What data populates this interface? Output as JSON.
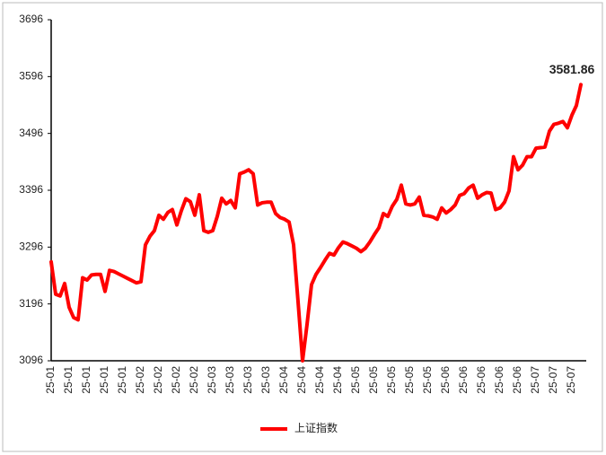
{
  "chart_data": {
    "type": "line",
    "categories": [
      "25-01",
      null,
      null,
      null,
      "25-01",
      null,
      null,
      null,
      "25-01",
      null,
      null,
      null,
      "25-01",
      null,
      null,
      null,
      "25-01",
      null,
      null,
      null,
      "25-02",
      null,
      null,
      null,
      "25-02",
      null,
      null,
      null,
      "25-02",
      null,
      null,
      null,
      "25-02",
      null,
      null,
      null,
      "25-03",
      null,
      null,
      null,
      "25-03",
      null,
      null,
      null,
      "25-03",
      null,
      null,
      null,
      "25-03",
      null,
      null,
      null,
      "25-04",
      null,
      null,
      null,
      "25-04",
      null,
      null,
      null,
      "25-04",
      null,
      null,
      null,
      "25-04",
      null,
      null,
      null,
      "25-05",
      null,
      null,
      null,
      "25-05",
      null,
      null,
      null,
      "25-05",
      null,
      null,
      null,
      "25-05",
      null,
      null,
      null,
      "25-05",
      null,
      null,
      null,
      "25-06",
      null,
      null,
      null,
      "25-06",
      null,
      null,
      null,
      "25-06",
      null,
      null,
      null,
      "25-06",
      null,
      null,
      null,
      "25-06",
      null,
      null,
      null,
      "25-07",
      null,
      null,
      null,
      "25-07",
      null,
      null,
      null,
      "25-07",
      null,
      null
    ],
    "series": [
      {
        "name": "上证指数",
        "color": "#ff0000",
        "values": [
          3270,
          3213,
          3210,
          3232,
          3190,
          3172,
          3168,
          3242,
          3238,
          3247,
          3248,
          3248,
          3218,
          3255,
          3253,
          3249,
          3245,
          3241,
          3237,
          3233,
          3235,
          3300,
          3315,
          3325,
          3352,
          3345,
          3357,
          3362,
          3335,
          3360,
          3381,
          3376,
          3352,
          3388,
          3325,
          3322,
          3325,
          3350,
          3382,
          3372,
          3378,
          3365,
          3425,
          3428,
          3432,
          3425,
          3370,
          3374,
          3375,
          3375,
          3355,
          3348,
          3345,
          3340,
          3300,
          3200,
          3096,
          3160,
          3230,
          3248,
          3260,
          3273,
          3285,
          3282,
          3295,
          3305,
          3302,
          3298,
          3294,
          3288,
          3294,
          3305,
          3318,
          3330,
          3355,
          3350,
          3368,
          3380,
          3405,
          3372,
          3370,
          3372,
          3384,
          3352,
          3351,
          3349,
          3345,
          3365,
          3356,
          3362,
          3370,
          3387,
          3390,
          3400,
          3405,
          3382,
          3388,
          3392,
          3391,
          3362,
          3365,
          3375,
          3395,
          3455,
          3432,
          3440,
          3455,
          3455,
          3470,
          3471,
          3472,
          3500,
          3512,
          3514,
          3517,
          3506,
          3528,
          3545,
          3581.86
        ]
      }
    ],
    "ylim": [
      3096,
      3696
    ],
    "yticks": [
      3096,
      3196,
      3296,
      3396,
      3496,
      3596,
      3696
    ],
    "grid": false,
    "legend": "bottom",
    "label_last": true
  }
}
